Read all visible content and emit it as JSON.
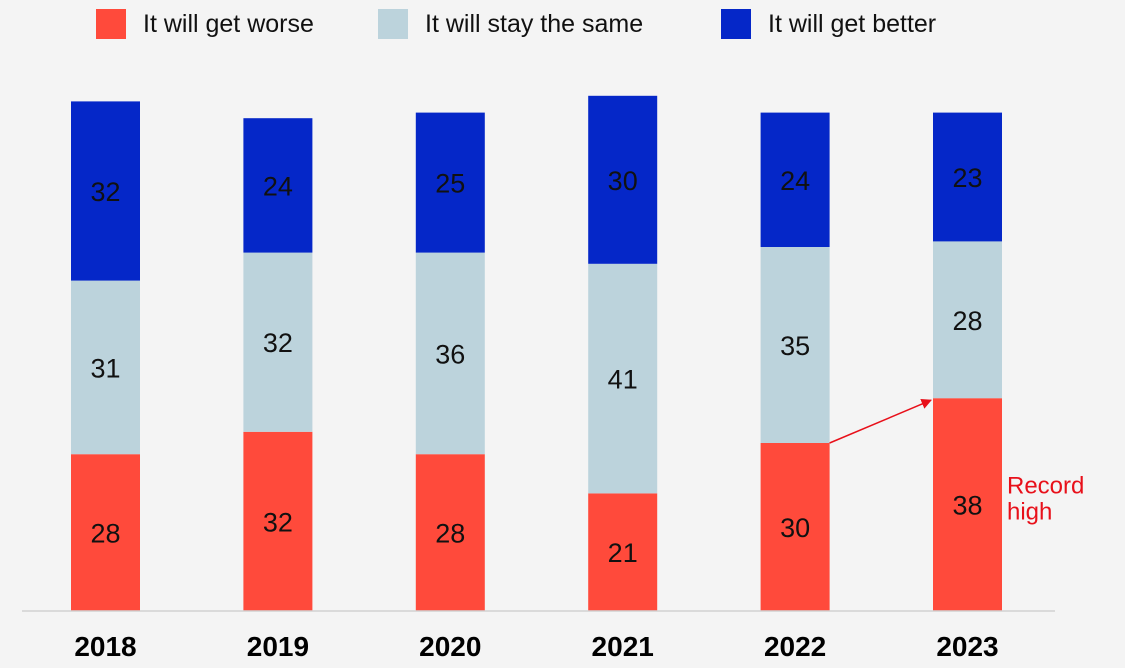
{
  "chart_data": {
    "type": "bar",
    "stacked": true,
    "categories": [
      "2018",
      "2019",
      "2020",
      "2021",
      "2022",
      "2023"
    ],
    "series": [
      {
        "name": "It will get worse",
        "color": "#ff4a3b",
        "values": [
          28,
          32,
          28,
          21,
          30,
          38
        ]
      },
      {
        "name": "It will stay the same",
        "color": "#bcd3dc",
        "values": [
          31,
          32,
          36,
          41,
          35,
          28
        ]
      },
      {
        "name": "It will get better",
        "color": "#0527c8",
        "values": [
          32,
          24,
          25,
          30,
          24,
          23
        ]
      }
    ],
    "title": "",
    "xlabel": "",
    "ylabel": "",
    "ylim": [
      0,
      100
    ],
    "grid": false,
    "legend": "top",
    "data_labels": true,
    "annotation": {
      "text_lines": [
        "Record",
        "high"
      ],
      "color": "#e8101a",
      "arrow_from_category": "2022",
      "arrow_to_category": "2023",
      "series": "It will get worse",
      "label_category": "2023"
    }
  }
}
